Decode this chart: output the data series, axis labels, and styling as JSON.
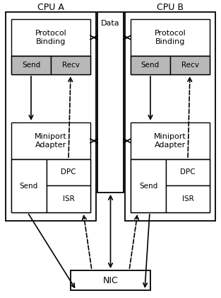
{
  "cpu_a_label": "CPU A",
  "cpu_b_label": "CPU B",
  "data_label": "Data",
  "nic_label": "NIC",
  "proto_label": "Protocol\nBinding",
  "send_label": "Send",
  "recv_label": "Recv",
  "mini_label": "Miniport\nAdapter",
  "dpc_label": "DPC",
  "isr_label": "ISR",
  "gray_fill": "#b8b8b8",
  "white_fill": "#ffffff",
  "edge_color": "#000000"
}
